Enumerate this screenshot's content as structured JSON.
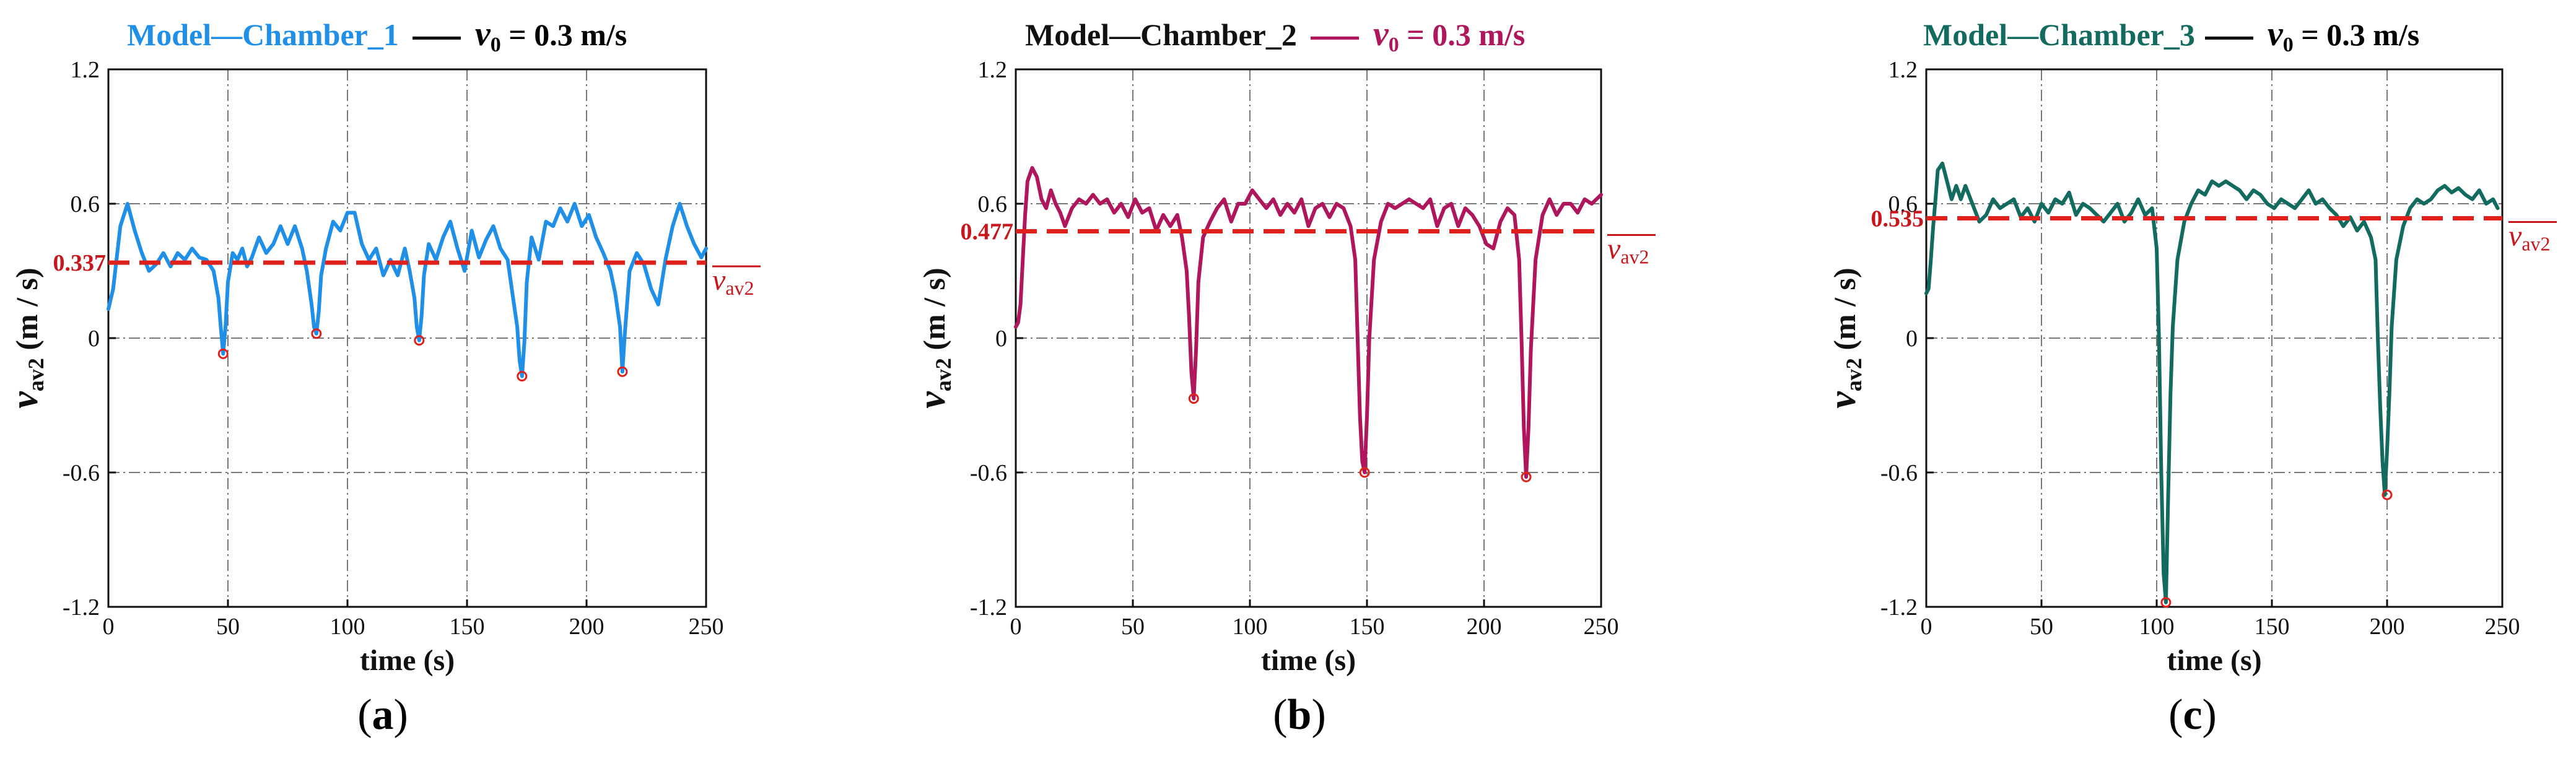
{
  "figure": {
    "panels": [
      {
        "id": "a",
        "label": "a",
        "title_model": "Model—Chamber_1",
        "title_color": "#1f8fe8",
        "title_rest_prefix": "v",
        "title_rest_sub": "0",
        "title_rest_suffix": " = 0.3 m/s",
        "line_label": "0.337",
        "line_color": "#e0201b",
        "series_color": "#1f8fe8",
        "avg_symbol": "v",
        "avg_symbol_sub": "av2",
        "minima": [
          [
            48,
            -0.07
          ],
          [
            87,
            0.02
          ],
          [
            130,
            -0.01
          ],
          [
            173,
            -0.17
          ],
          [
            215,
            -0.15
          ]
        ]
      },
      {
        "id": "b",
        "label": "b",
        "title_model": "Model—Chamber_2",
        "title_color": "#111111",
        "title_rest_prefix": "v",
        "title_rest_sub": "0",
        "title_rest_suffix": " = 0.3 m/s",
        "title_rest_color": "#b0165c",
        "line_label": "0.477",
        "line_color": "#e0201b",
        "series_color": "#b0165c",
        "avg_symbol": "v",
        "avg_symbol_sub": "av2",
        "minima": [
          [
            76,
            -0.27
          ],
          [
            149,
            -0.6
          ],
          [
            218,
            -0.62
          ]
        ]
      },
      {
        "id": "c",
        "label": "c",
        "title_model": "Model—Chamber_3",
        "title_color": "#136b5f",
        "title_rest_prefix": "v",
        "title_rest_sub": "0",
        "title_rest_suffix": " = 0.3 m/s",
        "line_label": "0.535",
        "line_color": "#e0201b",
        "series_color": "#136b5f",
        "avg_symbol": "v",
        "avg_symbol_sub": "av2",
        "minima": [
          [
            104,
            -1.18
          ],
          [
            200,
            -0.7
          ]
        ]
      }
    ]
  },
  "chart_data": [
    {
      "type": "line",
      "title": "Model—Chamber_1 —— v0 = 0.3 m/s",
      "xlabel": "time (s)",
      "ylabel": "vav2 (m/s)",
      "xlim": [
        0,
        250
      ],
      "ylim": [
        -1.2,
        1.2
      ],
      "xticks": [
        "0",
        "50",
        "100",
        "150",
        "200",
        "250"
      ],
      "yticks": [
        "-1.2",
        "-0.6",
        "0",
        "0.6",
        "1.2"
      ],
      "grid": true,
      "reference_line": {
        "name": "mean vav2",
        "value": 0.337,
        "label": "0.337"
      },
      "series": [
        {
          "name": "Model—Chamber_1",
          "x": [
            0,
            2,
            5,
            8,
            11,
            14,
            17,
            20,
            23,
            26,
            29,
            32,
            35,
            38,
            41,
            44,
            46,
            47,
            48,
            49,
            50,
            52,
            54,
            56,
            58,
            60,
            63,
            66,
            69,
            72,
            75,
            78,
            81,
            83,
            85,
            86,
            87,
            88,
            89,
            91,
            94,
            97,
            100,
            103,
            106,
            109,
            112,
            115,
            118,
            121,
            124,
            126,
            128,
            129,
            130,
            131,
            132,
            134,
            137,
            140,
            143,
            146,
            149,
            152,
            155,
            158,
            161,
            164,
            167,
            169,
            171,
            172,
            173,
            174,
            175,
            177,
            180,
            183,
            186,
            189,
            192,
            195,
            198,
            201,
            204,
            207,
            210,
            212,
            214,
            215,
            216,
            218,
            221,
            224,
            227,
            230,
            233,
            236,
            239,
            242,
            245,
            248,
            250
          ],
          "y": [
            0.13,
            0.22,
            0.5,
            0.6,
            0.48,
            0.38,
            0.3,
            0.33,
            0.38,
            0.32,
            0.38,
            0.35,
            0.4,
            0.36,
            0.35,
            0.3,
            0.18,
            0.05,
            -0.07,
            0.05,
            0.25,
            0.38,
            0.35,
            0.4,
            0.32,
            0.36,
            0.45,
            0.38,
            0.42,
            0.5,
            0.42,
            0.5,
            0.4,
            0.3,
            0.15,
            0.05,
            0.02,
            0.12,
            0.28,
            0.4,
            0.52,
            0.48,
            0.56,
            0.56,
            0.42,
            0.35,
            0.4,
            0.28,
            0.35,
            0.28,
            0.4,
            0.3,
            0.18,
            0.05,
            -0.01,
            0.1,
            0.28,
            0.42,
            0.35,
            0.45,
            0.52,
            0.4,
            0.3,
            0.48,
            0.36,
            0.44,
            0.5,
            0.4,
            0.35,
            0.2,
            0.05,
            -0.1,
            -0.17,
            -0.02,
            0.25,
            0.45,
            0.35,
            0.52,
            0.5,
            0.58,
            0.52,
            0.6,
            0.5,
            0.55,
            0.45,
            0.38,
            0.3,
            0.2,
            0.05,
            -0.15,
            0.02,
            0.3,
            0.38,
            0.33,
            0.22,
            0.15,
            0.35,
            0.5,
            0.6,
            0.5,
            0.42,
            0.36,
            0.4
          ]
        }
      ]
    },
    {
      "type": "line",
      "title": "Model—Chamber_2 —— v0 = 0.3 m/s",
      "xlabel": "time (s)",
      "ylabel": "vav2 (m/s)",
      "xlim": [
        0,
        250
      ],
      "ylim": [
        -1.2,
        1.2
      ],
      "xticks": [
        "0",
        "50",
        "100",
        "150",
        "200",
        "250"
      ],
      "yticks": [
        "-1.2",
        "-0.6",
        "0",
        "0.6",
        "1.2"
      ],
      "grid": true,
      "reference_line": {
        "name": "mean vav2",
        "value": 0.477,
        "label": "0.477"
      },
      "series": [
        {
          "name": "Model—Chamber_2",
          "x": [
            0,
            1,
            2,
            3,
            4,
            5,
            7,
            9,
            11,
            13,
            15,
            17,
            19,
            21,
            24,
            27,
            30,
            33,
            36,
            39,
            42,
            45,
            48,
            51,
            54,
            57,
            60,
            63,
            66,
            69,
            71,
            73,
            74,
            75,
            76,
            77,
            78,
            80,
            83,
            86,
            89,
            92,
            95,
            98,
            101,
            104,
            107,
            110,
            113,
            116,
            119,
            122,
            125,
            128,
            131,
            134,
            137,
            140,
            143,
            145,
            146,
            147,
            148,
            149,
            150,
            151,
            153,
            156,
            159,
            162,
            165,
            168,
            171,
            174,
            177,
            180,
            183,
            186,
            189,
            192,
            195,
            198,
            201,
            204,
            207,
            210,
            213,
            215,
            216,
            217,
            218,
            219,
            220,
            222,
            225,
            228,
            231,
            234,
            237,
            240,
            243,
            246,
            250
          ],
          "y": [
            0.05,
            0.07,
            0.15,
            0.35,
            0.55,
            0.7,
            0.76,
            0.72,
            0.62,
            0.58,
            0.66,
            0.6,
            0.56,
            0.5,
            0.58,
            0.62,
            0.6,
            0.64,
            0.6,
            0.62,
            0.56,
            0.6,
            0.54,
            0.62,
            0.56,
            0.58,
            0.48,
            0.55,
            0.5,
            0.55,
            0.45,
            0.3,
            0.1,
            -0.15,
            -0.27,
            -0.05,
            0.25,
            0.45,
            0.52,
            0.58,
            0.62,
            0.52,
            0.6,
            0.6,
            0.66,
            0.62,
            0.58,
            0.62,
            0.55,
            0.6,
            0.56,
            0.62,
            0.5,
            0.58,
            0.6,
            0.54,
            0.6,
            0.58,
            0.5,
            0.35,
            0.0,
            -0.35,
            -0.55,
            -0.6,
            -0.35,
            0.0,
            0.35,
            0.52,
            0.6,
            0.58,
            0.6,
            0.62,
            0.6,
            0.58,
            0.62,
            0.5,
            0.58,
            0.6,
            0.5,
            0.58,
            0.55,
            0.5,
            0.42,
            0.4,
            0.52,
            0.58,
            0.55,
            0.35,
            0.0,
            -0.4,
            -0.62,
            -0.4,
            -0.05,
            0.35,
            0.55,
            0.62,
            0.55,
            0.6,
            0.6,
            0.56,
            0.62,
            0.6,
            0.64
          ]
        }
      ]
    },
    {
      "type": "line",
      "title": "Model—Chamber_3 —— v0 = 0.3 m/s",
      "xlabel": "time (s)",
      "ylabel": "vav2 (m/s)",
      "xlim": [
        0,
        250
      ],
      "ylim": [
        -1.2,
        1.2
      ],
      "xticks": [
        "0",
        "50",
        "100",
        "150",
        "200",
        "250"
      ],
      "yticks": [
        "-1.2",
        "-0.6",
        "0",
        "0.6",
        "1.2"
      ],
      "grid": true,
      "reference_line": {
        "name": "mean vav2",
        "value": 0.535,
        "label": "0.535"
      },
      "series": [
        {
          "name": "Model—Chamber_3",
          "x": [
            0,
            1,
            2,
            3,
            4,
            5,
            7,
            9,
            11,
            13,
            15,
            17,
            20,
            23,
            26,
            29,
            32,
            35,
            38,
            41,
            44,
            47,
            50,
            53,
            56,
            59,
            62,
            65,
            68,
            71,
            74,
            77,
            80,
            83,
            86,
            89,
            92,
            95,
            98,
            100,
            101,
            102,
            103,
            104,
            105,
            106,
            107,
            109,
            112,
            115,
            118,
            121,
            124,
            127,
            130,
            133,
            136,
            139,
            142,
            145,
            148,
            151,
            154,
            157,
            160,
            163,
            166,
            169,
            172,
            175,
            178,
            181,
            184,
            187,
            190,
            193,
            195,
            196,
            197,
            198,
            199,
            200,
            201,
            202,
            204,
            207,
            210,
            213,
            216,
            219,
            222,
            225,
            228,
            231,
            234,
            237,
            240,
            243,
            246,
            248
          ],
          "y": [
            0.2,
            0.22,
            0.35,
            0.5,
            0.62,
            0.75,
            0.78,
            0.7,
            0.62,
            0.68,
            0.62,
            0.68,
            0.6,
            0.52,
            0.55,
            0.62,
            0.58,
            0.6,
            0.62,
            0.54,
            0.58,
            0.52,
            0.6,
            0.56,
            0.62,
            0.6,
            0.65,
            0.55,
            0.6,
            0.58,
            0.55,
            0.52,
            0.56,
            0.6,
            0.52,
            0.56,
            0.62,
            0.55,
            0.58,
            0.4,
            0.0,
            -0.6,
            -1.05,
            -1.18,
            -0.7,
            -0.25,
            0.05,
            0.35,
            0.52,
            0.6,
            0.66,
            0.64,
            0.7,
            0.68,
            0.7,
            0.68,
            0.66,
            0.62,
            0.66,
            0.64,
            0.6,
            0.58,
            0.62,
            0.6,
            0.58,
            0.62,
            0.66,
            0.6,
            0.62,
            0.58,
            0.55,
            0.5,
            0.54,
            0.48,
            0.52,
            0.45,
            0.35,
            0.0,
            -0.3,
            -0.55,
            -0.7,
            -0.5,
            -0.25,
            0.05,
            0.35,
            0.5,
            0.58,
            0.62,
            0.6,
            0.62,
            0.66,
            0.68,
            0.65,
            0.67,
            0.64,
            0.62,
            0.66,
            0.6,
            0.62,
            0.58
          ]
        }
      ]
    }
  ]
}
